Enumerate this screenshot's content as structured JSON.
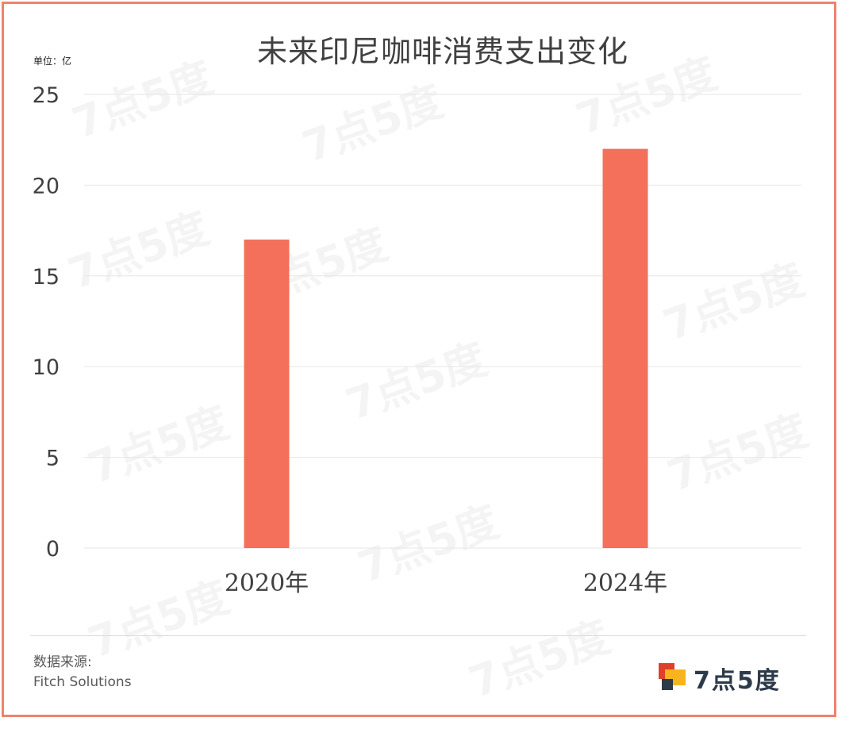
{
  "chart_data": {
    "type": "bar",
    "title": "未来印尼咖啡消费支出变化",
    "unit_label": "单位：亿",
    "categories": [
      "2020年",
      "2024年"
    ],
    "series": [
      {
        "values": [
          17,
          22
        ]
      }
    ],
    "ylim": [
      0,
      25
    ],
    "yticks": [
      0,
      5,
      10,
      15,
      20,
      25
    ],
    "grid": true,
    "bar_color": "#f4705a",
    "grid_color": "#e6e6e6"
  },
  "footer": {
    "source_label": "数据来源:",
    "source_name": "Fitch Solutions"
  },
  "logo": {
    "text": "7点5度",
    "watermark": "7点5度",
    "colors": [
      "#e0402a",
      "#f6b51e",
      "#2d3a4a"
    ]
  }
}
